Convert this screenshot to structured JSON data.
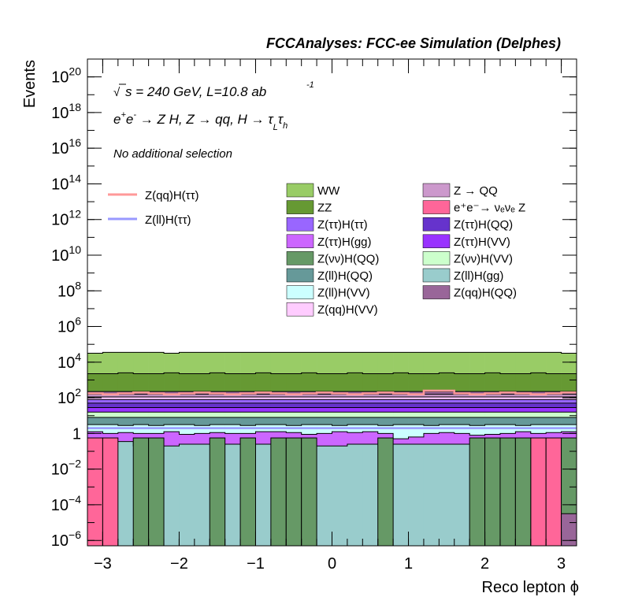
{
  "header": {
    "title": "FCCAnalyses: FCC-ee Simulation (Delphes)"
  },
  "annotations": {
    "sqrt_s": "s = 240 GeV, L=10.8 ab",
    "sqrt_symbol": "√",
    "lumi_exp": "-1",
    "process_base": "e",
    "process_sup1": "+",
    "process_mid": "e",
    "process_sup2": "-",
    "process_rest": " → Z H, Z  → qq, H  → ",
    "tau1": "τ",
    "tau1_sub": "L",
    "tau2": "τ",
    "tau2_sub": "h",
    "selection": "No additional selection"
  },
  "chart_data": {
    "type": "histogram",
    "xlabel": "Reco lepton ϕ",
    "ylabel": "Events",
    "xlim": [
      -3.2,
      3.2
    ],
    "ylim_log10": [
      -6.3,
      21
    ],
    "log_y": true,
    "x_ticks": [
      {
        "v": -3,
        "label": "−3"
      },
      {
        "v": -2,
        "label": "−2"
      },
      {
        "v": -1,
        "label": "−1"
      },
      {
        "v": 0,
        "label": "0"
      },
      {
        "v": 1,
        "label": "1"
      },
      {
        "v": 2,
        "label": "2"
      },
      {
        "v": 3,
        "label": "3"
      }
    ],
    "y_ticks": [
      {
        "exp": 20,
        "base": "10",
        "sup": "20"
      },
      {
        "exp": 18,
        "base": "10",
        "sup": "18"
      },
      {
        "exp": 16,
        "base": "10",
        "sup": "16"
      },
      {
        "exp": 14,
        "base": "10",
        "sup": "14"
      },
      {
        "exp": 12,
        "base": "10",
        "sup": "12"
      },
      {
        "exp": 10,
        "base": "10",
        "sup": "10"
      },
      {
        "exp": 8,
        "base": "10",
        "sup": "8"
      },
      {
        "exp": 6,
        "base": "10",
        "sup": "6"
      },
      {
        "exp": 4,
        "base": "10",
        "sup": "4"
      },
      {
        "exp": 2,
        "base": "10",
        "sup": "2"
      },
      {
        "exp": 0,
        "base": "1",
        "sup": ""
      },
      {
        "exp": -2,
        "base": "10",
        "sup": "−2"
      },
      {
        "exp": -4,
        "base": "10",
        "sup": "−4"
      },
      {
        "exp": -6,
        "base": "10",
        "sup": "−6"
      }
    ],
    "bins": 32,
    "stack_log10_tops": [
      {
        "name": "Z(ll)H(gg)",
        "color": "#99cccc",
        "tops": [
          -0.45,
          -0.45,
          -0.45,
          -0.7,
          -0.7,
          -0.7,
          -0.6,
          -0.6,
          -0.6,
          -0.6,
          -0.6,
          -0.6,
          -0.6,
          -0.6,
          -0.7,
          -0.7,
          -0.7,
          -0.6,
          -0.6,
          -0.6,
          -0.6,
          -0.6,
          -0.6,
          -0.6,
          -0.6,
          -0.6,
          -0.6,
          -0.6,
          -0.6,
          -0.6,
          -0.6,
          -0.45
        ]
      },
      {
        "name": "Z(ττ)H(gg)",
        "color": "#cc66ff",
        "tops": [
          0.1,
          0.0,
          0.05,
          0.0,
          0.0,
          0.1,
          -0.05,
          0.0,
          0.05,
          0.0,
          0.0,
          0.1,
          0.1,
          0.05,
          -0.05,
          0.0,
          0.1,
          0.05,
          0.1,
          0.0,
          -0.3,
          -0.2,
          0.0,
          0.05,
          0.0,
          -0.1,
          -0.05,
          0.0,
          0.1,
          0.0,
          0.05,
          0.1
        ]
      },
      {
        "name": "Z(ll)H(VV)",
        "color": "#ccffff",
        "tops": [
          0.5,
          0.5,
          0.45,
          0.5,
          0.45,
          0.5,
          0.5,
          0.45,
          0.5,
          0.5,
          0.45,
          0.5,
          0.5,
          0.45,
          0.5,
          0.5,
          0.45,
          0.5,
          0.5,
          0.45,
          0.5,
          0.5,
          0.45,
          0.5,
          0.5,
          0.45,
          0.5,
          0.5,
          0.45,
          0.5,
          0.5,
          0.5
        ]
      },
      {
        "name": "Z(ll)H(QQ)",
        "color": "#669999",
        "tops": [
          0.9,
          0.9,
          0.9,
          0.9,
          0.9,
          0.9,
          0.9,
          0.9,
          0.9,
          0.9,
          0.9,
          0.9,
          0.9,
          0.9,
          0.9,
          0.9,
          0.9,
          0.9,
          0.9,
          0.9,
          0.9,
          0.9,
          0.9,
          0.9,
          0.9,
          0.9,
          0.9,
          0.9,
          0.9,
          0.9,
          0.9,
          0.9
        ]
      },
      {
        "name": "Z(νν)H(VV)",
        "color": "#ccffcc",
        "tops": [
          1.2,
          1.2,
          1.2,
          1.2,
          1.2,
          1.2,
          1.2,
          1.2,
          1.2,
          1.2,
          1.2,
          1.2,
          1.2,
          1.2,
          1.2,
          1.2,
          1.2,
          1.2,
          1.2,
          1.2,
          1.2,
          1.2,
          1.2,
          1.2,
          1.2,
          1.2,
          1.2,
          1.2,
          1.2,
          1.2,
          1.2,
          1.2
        ]
      },
      {
        "name": "Z(ττ)H(VV)",
        "color": "#9933ff",
        "tops": [
          1.45,
          1.45,
          1.45,
          1.45,
          1.45,
          1.45,
          1.45,
          1.45,
          1.45,
          1.45,
          1.45,
          1.45,
          1.45,
          1.45,
          1.45,
          1.45,
          1.45,
          1.45,
          1.45,
          1.45,
          1.45,
          1.45,
          1.45,
          1.45,
          1.45,
          1.45,
          1.45,
          1.45,
          1.45,
          1.45,
          1.45,
          1.45
        ]
      },
      {
        "name": "Z(ττ)H(QQ)",
        "color": "#6633cc",
        "tops": [
          1.7,
          1.7,
          1.7,
          1.7,
          1.7,
          1.7,
          1.7,
          1.7,
          1.7,
          1.7,
          1.7,
          1.7,
          1.7,
          1.7,
          1.7,
          1.7,
          1.7,
          1.7,
          1.7,
          1.7,
          1.7,
          1.7,
          1.7,
          1.7,
          1.7,
          1.7,
          1.7,
          1.7,
          1.7,
          1.7,
          1.7,
          1.7
        ]
      },
      {
        "name": "Z(ττ)H(ττ)",
        "color": "#9966ff",
        "tops": [
          1.9,
          1.9,
          1.9,
          1.9,
          1.9,
          1.9,
          1.9,
          1.9,
          1.9,
          1.9,
          1.9,
          1.9,
          1.9,
          1.9,
          1.9,
          1.9,
          1.9,
          1.9,
          1.9,
          1.9,
          1.9,
          1.9,
          1.9,
          1.9,
          1.9,
          1.9,
          1.9,
          1.9,
          1.9,
          1.9,
          1.9,
          1.9
        ]
      },
      {
        "name": "Z(qq)H(VV)",
        "color": "#ffccff",
        "tops": [
          2.05,
          2.05,
          2.05,
          2.05,
          2.05,
          2.05,
          2.05,
          2.05,
          2.05,
          2.05,
          2.05,
          2.05,
          2.05,
          2.05,
          2.05,
          2.05,
          2.05,
          2.05,
          2.05,
          2.05,
          2.05,
          2.05,
          2.05,
          2.05,
          2.05,
          2.05,
          2.05,
          2.05,
          2.05,
          2.05,
          2.05,
          2.05
        ]
      },
      {
        "name": "Z → QQ",
        "color": "#cc99cc",
        "tops": [
          2.2,
          2.2,
          2.2,
          2.2,
          2.2,
          2.2,
          2.2,
          2.2,
          2.2,
          2.2,
          2.2,
          2.2,
          2.2,
          2.2,
          2.2,
          2.2,
          2.2,
          2.2,
          2.2,
          2.2,
          2.2,
          2.2,
          2.2,
          2.2,
          2.2,
          2.2,
          2.2,
          2.2,
          2.2,
          2.2,
          2.2,
          2.2
        ]
      },
      {
        "name": "Z(qq)H(QQ)",
        "color": "#996699",
        "tops": [
          2.35,
          2.35,
          2.35,
          2.35,
          2.35,
          2.35,
          2.35,
          2.35,
          2.35,
          2.35,
          2.35,
          2.35,
          2.35,
          2.35,
          2.35,
          2.35,
          2.35,
          2.35,
          2.35,
          2.35,
          2.35,
          2.35,
          2.35,
          2.35,
          2.35,
          2.35,
          2.35,
          2.35,
          2.35,
          2.35,
          2.35,
          2.35
        ]
      },
      {
        "name": "ZZ",
        "color": "#669933",
        "tops": [
          3.35,
          3.35,
          3.4,
          3.35,
          3.35,
          3.4,
          3.35,
          3.35,
          3.4,
          3.35,
          3.35,
          3.4,
          3.35,
          3.35,
          3.4,
          3.35,
          3.35,
          3.4,
          3.35,
          3.35,
          3.4,
          3.35,
          3.35,
          3.4,
          3.35,
          3.35,
          3.4,
          3.35,
          3.35,
          3.4,
          3.35,
          3.35
        ]
      },
      {
        "name": "WW",
        "color": "#99cc66",
        "tops": [
          4.5,
          4.55,
          4.55,
          4.55,
          4.55,
          4.5,
          4.55,
          4.55,
          4.55,
          4.55,
          4.55,
          4.55,
          4.55,
          4.55,
          4.55,
          4.55,
          4.55,
          4.55,
          4.55,
          4.55,
          4.55,
          4.55,
          4.55,
          4.55,
          4.55,
          4.55,
          4.55,
          4.55,
          4.55,
          4.55,
          4.55,
          4.5
        ]
      }
    ],
    "overlay_bars": [
      {
        "name": "e+e- → νeνe Z",
        "color": "#ff6699",
        "bins": [
          0,
          1,
          29,
          30
        ],
        "top": -0.25
      },
      {
        "name": "Z(νν)H(QQ)",
        "color": "#669966",
        "bins": [
          3,
          4,
          8,
          10,
          12,
          13,
          14,
          19,
          25,
          26,
          27,
          28,
          31
        ],
        "top": -0.25
      },
      {
        "name": "Z(qq)H(QQ)",
        "color": "#996699",
        "bins": [
          31
        ],
        "top": -4.5
      }
    ],
    "signal_lines": [
      {
        "name": "Z(qq)H(ττ)",
        "color": "#ff9999",
        "log10": [
          2.25,
          2.2,
          2.25,
          2.3,
          2.25,
          2.2,
          2.25,
          2.3,
          2.25,
          2.2,
          2.25,
          2.3,
          2.25,
          2.2,
          2.25,
          2.3,
          2.25,
          2.2,
          2.25,
          2.3,
          2.25,
          2.2,
          2.4,
          2.4,
          2.25,
          2.2,
          2.25,
          2.3,
          2.25,
          2.2,
          2.25,
          2.3
        ]
      },
      {
        "name": "Z(ll)H(ττ)",
        "color": "#9999ff",
        "log10": [
          0.3,
          0.3,
          0.3,
          0.3,
          0.3,
          0.3,
          0.3,
          0.3,
          0.3,
          0.3,
          0.3,
          0.3,
          0.3,
          0.3,
          0.3,
          0.3,
          0.3,
          0.3,
          0.3,
          0.3,
          0.3,
          0.3,
          0.3,
          0.3,
          0.3,
          0.3,
          0.3,
          0.3,
          0.3,
          0.3,
          0.3,
          0.3
        ]
      }
    ],
    "legend_left": [
      {
        "label": "Z(qq)H(ττ)",
        "color": "#ff9999",
        "kind": "line"
      },
      {
        "label": "Z(ll)H(ττ)",
        "color": "#9999ff",
        "kind": "line"
      }
    ],
    "legend_col1": [
      {
        "label": "WW",
        "color": "#99cc66"
      },
      {
        "label": "ZZ",
        "color": "#669933"
      },
      {
        "label": "Z(ττ)H(ττ)",
        "color": "#9966ff"
      },
      {
        "label": "Z(ττ)H(gg)",
        "color": "#cc66ff"
      },
      {
        "label": "Z(νν)H(QQ)",
        "color": "#669966"
      },
      {
        "label": "Z(ll)H(QQ)",
        "color": "#669999"
      },
      {
        "label": "Z(ll)H(VV)",
        "color": "#ccffff"
      },
      {
        "label": "Z(qq)H(VV)",
        "color": "#ffccff"
      }
    ],
    "legend_col2": [
      {
        "label": "Z → QQ",
        "color": "#cc99cc"
      },
      {
        "label": "e⁺e⁻→ νₑνₑ Z",
        "color": "#ff6699"
      },
      {
        "label": "Z(ττ)H(QQ)",
        "color": "#6633cc"
      },
      {
        "label": "Z(ττ)H(VV)",
        "color": "#9933ff"
      },
      {
        "label": "Z(νν)H(VV)",
        "color": "#ccffcc"
      },
      {
        "label": "Z(ll)H(gg)",
        "color": "#99cccc"
      },
      {
        "label": "Z(qq)H(QQ)",
        "color": "#996699"
      }
    ]
  }
}
